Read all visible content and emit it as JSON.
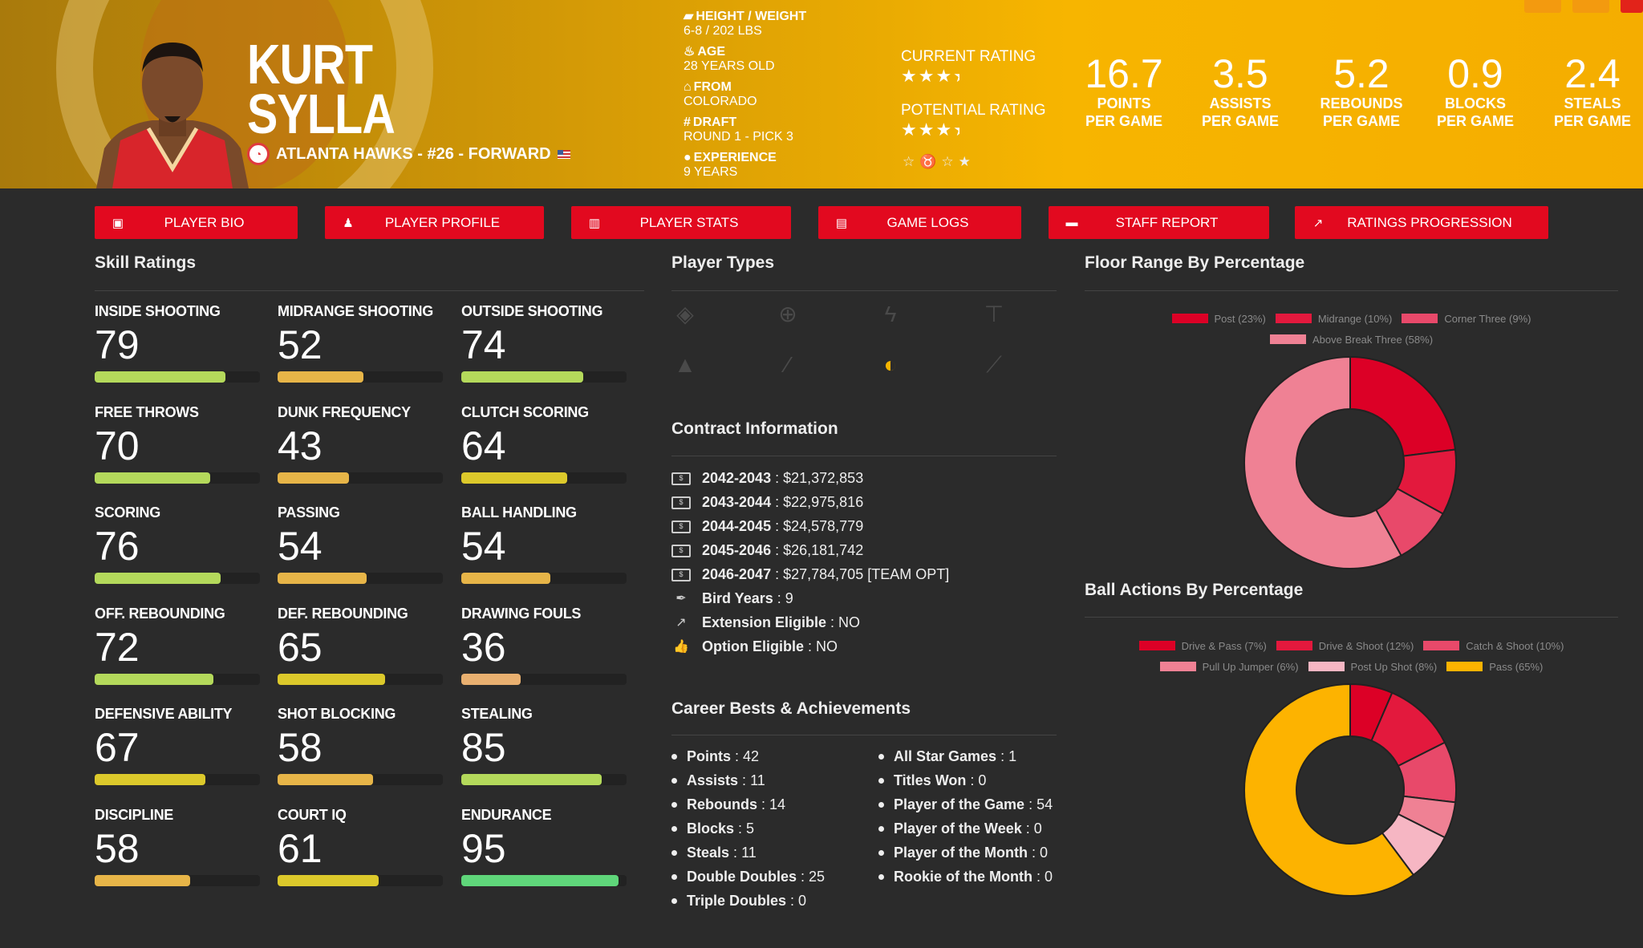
{
  "player": {
    "first_name": "KURT",
    "last_name": "SYLLA",
    "team_line": "ATLANTA HAWKS - #26 - FORWARD",
    "bio": [
      {
        "icon": "ruler-icon",
        "glyph": "▰",
        "label": "HEIGHT / WEIGHT",
        "value": "6-8 / 202 LBS"
      },
      {
        "icon": "birthday-cake-icon",
        "glyph": "♨",
        "label": "AGE",
        "value": "28 YEARS OLD"
      },
      {
        "icon": "school-icon",
        "glyph": "⌂",
        "label": "FROM",
        "value": "COLORADO"
      },
      {
        "icon": "hashtag-icon",
        "glyph": "#",
        "label": "DRAFT",
        "value": "ROUND 1 - PICK 3"
      },
      {
        "icon": "user-clock-icon",
        "glyph": "●",
        "label": "EXPERIENCE",
        "value": "9 YEARS"
      }
    ],
    "current_rating_label": "CURRENT RATING",
    "current_rating_stars": 3.5,
    "potential_rating_label": "POTENTIAL RATING",
    "potential_rating_stars": 3.5,
    "stats": [
      {
        "value": "16.7",
        "l1": "POINTS",
        "l2": "PER GAME"
      },
      {
        "value": "3.5",
        "l1": "ASSISTS",
        "l2": "PER GAME"
      },
      {
        "value": "5.2",
        "l1": "REBOUNDS",
        "l2": "PER GAME"
      },
      {
        "value": "0.9",
        "l1": "BLOCKS",
        "l2": "PER GAME"
      },
      {
        "value": "2.4",
        "l1": "STEALS",
        "l2": "PER GAME"
      }
    ]
  },
  "nav": [
    {
      "label": "PLAYER BIO",
      "icon": "id-card-icon",
      "glyph": "▣"
    },
    {
      "label": "PLAYER PROFILE",
      "icon": "book-reader-icon",
      "glyph": "♟"
    },
    {
      "label": "PLAYER STATS",
      "icon": "bar-chart-icon",
      "glyph": "▥"
    },
    {
      "label": "GAME LOGS",
      "icon": "clipboard-icon",
      "glyph": "▤"
    },
    {
      "label": "STAFF REPORT",
      "icon": "comment-icon",
      "glyph": "▬"
    },
    {
      "label": "RATINGS PROGRESSION",
      "icon": "line-chart-icon",
      "glyph": "↗"
    }
  ],
  "skills_title": "Skill Ratings",
  "skills": [
    {
      "label": "INSIDE SHOOTING",
      "value": 79
    },
    {
      "label": "MIDRANGE SHOOTING",
      "value": 52
    },
    {
      "label": "OUTSIDE SHOOTING",
      "value": 74
    },
    {
      "label": "FREE THROWS",
      "value": 70
    },
    {
      "label": "DUNK FREQUENCY",
      "value": 43
    },
    {
      "label": "CLUTCH SCORING",
      "value": 64
    },
    {
      "label": "SCORING",
      "value": 76
    },
    {
      "label": "PASSING",
      "value": 54
    },
    {
      "label": "BALL HANDLING",
      "value": 54
    },
    {
      "label": "OFF. REBOUNDING",
      "value": 72
    },
    {
      "label": "DEF. REBOUNDING",
      "value": 65
    },
    {
      "label": "DRAWING FOULS",
      "value": 36
    },
    {
      "label": "DEFENSIVE ABILITY",
      "value": 67
    },
    {
      "label": "SHOT BLOCKING",
      "value": 58
    },
    {
      "label": "STEALING",
      "value": 85
    },
    {
      "label": "DISCIPLINE",
      "value": 58
    },
    {
      "label": "COURT IQ",
      "value": 61
    },
    {
      "label": "ENDURANCE",
      "value": 95
    }
  ],
  "player_types_title": "Player Types",
  "player_types": [
    {
      "icon": "fill-drip-icon",
      "glyph": "◈",
      "active": false
    },
    {
      "icon": "crosshairs-icon",
      "glyph": "⊕",
      "active": false
    },
    {
      "icon": "bolt-icon",
      "glyph": "ϟ",
      "active": false
    },
    {
      "icon": "paint-roller-icon",
      "glyph": "⊤",
      "active": false
    },
    {
      "icon": "hat-wizard-icon",
      "glyph": "▲",
      "active": false
    },
    {
      "icon": "magic-wand-icon",
      "glyph": "⁄",
      "active": false
    },
    {
      "icon": "shield-icon",
      "glyph": "◐",
      "active": true
    },
    {
      "icon": "broom-icon",
      "glyph": "⟋",
      "active": false
    }
  ],
  "contract_title": "Contract Information",
  "contract": [
    {
      "icon": "money-bill-icon",
      "label": "2042-2043",
      "value": "$21,372,853"
    },
    {
      "icon": "money-bill-icon",
      "label": "2043-2044",
      "value": "$22,975,816"
    },
    {
      "icon": "money-bill-icon",
      "label": "2044-2045",
      "value": "$24,578,779"
    },
    {
      "icon": "money-bill-icon",
      "label": "2045-2046",
      "value": "$26,181,742"
    },
    {
      "icon": "money-bill-icon",
      "label": "2046-2047",
      "value": "$27,784,705 [TEAM OPT]"
    },
    {
      "icon": "feather-icon",
      "label": "Bird Years",
      "value": "9"
    },
    {
      "icon": "external-link-icon",
      "label": "Extension Eligible",
      "value": "NO"
    },
    {
      "icon": "thumbs-up-icon",
      "label": "Option Eligible",
      "value": "NO"
    }
  ],
  "career_title": "Career Bests & Achievements",
  "career_left": [
    {
      "label": "Points",
      "value": "42"
    },
    {
      "label": "Assists",
      "value": "11"
    },
    {
      "label": "Rebounds",
      "value": "14"
    },
    {
      "label": "Blocks",
      "value": "5"
    },
    {
      "label": "Steals",
      "value": "11"
    },
    {
      "label": "Double Doubles",
      "value": "25"
    },
    {
      "label": "Triple Doubles",
      "value": "0"
    }
  ],
  "career_right": [
    {
      "label": "All Star Games",
      "value": "1"
    },
    {
      "label": "Titles Won",
      "value": "0"
    },
    {
      "label": "Player of the Game",
      "value": "54"
    },
    {
      "label": "Player of the Week",
      "value": "0"
    },
    {
      "label": "Player of the Month",
      "value": "0"
    },
    {
      "label": "Rookie of the Month",
      "value": "0"
    }
  ],
  "chart_data": [
    {
      "type": "pie",
      "title": "Floor Range By Percentage",
      "legend": "top",
      "labels": [
        "Post (23%)",
        "Midrange (10%)",
        "Corner Three (9%)",
        "Above Break Three (58%)"
      ],
      "values": [
        23,
        10,
        9,
        58
      ],
      "colors": [
        "#dc0026",
        "#e3193d",
        "#e8496a",
        "#ef8194"
      ]
    },
    {
      "type": "pie",
      "title": "Ball Actions By Percentage",
      "legend": "top",
      "labels": [
        "Drive & Pass (7%)",
        "Drive & Shoot (12%)",
        "Catch & Shoot (10%)",
        "Pull Up Jumper (6%)",
        "Post Up Shot (8%)",
        "Pass (65%)"
      ],
      "values": [
        7,
        12,
        10,
        6,
        8,
        65
      ],
      "colors": [
        "#dc0026",
        "#e3193d",
        "#e8496a",
        "#ef8194",
        "#f6b6c3",
        "#fdb300"
      ]
    }
  ]
}
